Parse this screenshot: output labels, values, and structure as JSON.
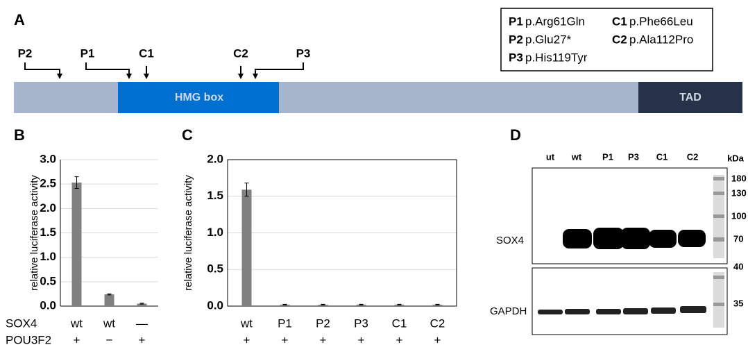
{
  "panels": [
    "A",
    "B",
    "C",
    "D"
  ],
  "protein": {
    "domains": [
      "HMG box",
      "TAD"
    ],
    "mutations": [
      "P2",
      "P1",
      "C1",
      "C2",
      "P3"
    ]
  },
  "legend": [
    {
      "code": "P1",
      "change": "p.Arg61Gln"
    },
    {
      "code": "P2",
      "change": "p.Glu27*"
    },
    {
      "code": "P3",
      "change": "p.His119Tyr"
    },
    {
      "code": "C1",
      "change": "p.Phe66Leu"
    },
    {
      "code": "C2",
      "change": "p.Ala112Pro"
    }
  ],
  "chart_data": [
    {
      "type": "bar",
      "y_label": "relative luciferase activity",
      "row_names": [
        "SOX4",
        "POU3F2"
      ],
      "categories": [
        "wt",
        "wt",
        "—"
      ],
      "secondary_categories": [
        "+",
        "−",
        "+"
      ],
      "values": [
        2.53,
        0.24,
        0.05
      ],
      "errors": [
        0.12,
        0.01,
        0.01
      ],
      "color": "#808080",
      "ylim": [
        0,
        3
      ],
      "yticks": [
        {
          "value": 0,
          "label": "0.0"
        },
        0.5,
        {
          "value": 1,
          "label": "1.0"
        },
        1.5,
        {
          "value": 2,
          "label": "2.0"
        },
        2.5,
        {
          "value": 3,
          "label": "3.0"
        }
      ],
      "grid": true
    },
    {
      "type": "bar",
      "y_label": "relative luciferase activity",
      "categories": [
        "wt",
        "P1",
        "P2",
        "P3",
        "C1",
        "C2"
      ],
      "secondary_categories": [
        "+",
        "+",
        "+",
        "+",
        "+",
        "+"
      ],
      "values": [
        1.59,
        0.02,
        0.02,
        0.02,
        0.02,
        0.02
      ],
      "errors": [
        0.09,
        0.005,
        0.005,
        0.005,
        0.005,
        0.005
      ],
      "color": "#808080",
      "ylim": [
        0,
        2
      ],
      "yticks": [
        {
          "value": 0,
          "label": "0.0"
        },
        0.5,
        {
          "value": 1,
          "label": "1.0"
        },
        1.5,
        {
          "value": 2,
          "label": "2.0"
        }
      ],
      "grid": true
    }
  ],
  "blot": {
    "lanes": [
      "ut",
      "wt",
      "P1",
      "P3",
      "C1",
      "C2"
    ],
    "unit": "kDa",
    "targets": [
      "SOX4",
      "GAPDH"
    ],
    "upper_markers": [
      "180",
      "130",
      "100",
      "70"
    ],
    "lower_markers": [
      "40",
      "35"
    ]
  }
}
